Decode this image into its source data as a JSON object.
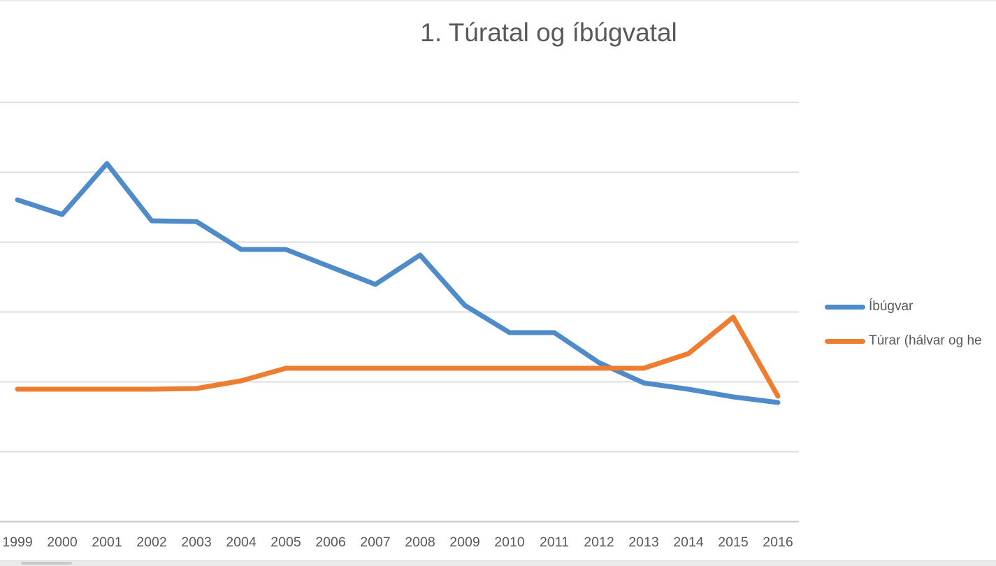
{
  "page": {
    "background": "#ffffff",
    "top_border_color": "#e9e9e9",
    "bottom_strip_color": "#eaeaea",
    "bottom_left_artifact_color": "#c9c9c9"
  },
  "chart": {
    "title": "1. Túratal og íbúgvatal",
    "title_color": "#595959",
    "gridline_color": "#d9d9d9",
    "axis_line_color": "#c6c6c6",
    "tick_label_color": "#595959",
    "legend": [
      {
        "label": "Íbúgvar",
        "color": "#4f8bc9"
      },
      {
        "label": "Túrar (hálvar og he",
        "color": "#ed7d31"
      }
    ]
  },
  "chart_data": {
    "type": "line",
    "title": "1. Túratal og íbúgvatal",
    "x": [
      1999,
      2000,
      2001,
      2002,
      2003,
      2004,
      2005,
      2006,
      2007,
      2008,
      2009,
      2010,
      2011,
      2012,
      2013,
      2014,
      2015,
      2016
    ],
    "series": [
      {
        "name": "Íbúgvar",
        "color": "#4f8bc9",
        "values": [
          4.6,
          4.39,
          5.12,
          4.3,
          4.29,
          3.89,
          3.89,
          3.64,
          3.39,
          3.81,
          3.09,
          2.7,
          2.7,
          2.27,
          1.98,
          1.89,
          1.78,
          1.7
        ]
      },
      {
        "name": "Túrar (hálvar og he",
        "color": "#ed7d31",
        "values": [
          1.89,
          1.89,
          1.89,
          1.89,
          1.9,
          2.01,
          2.19,
          2.19,
          2.19,
          2.19,
          2.19,
          2.19,
          2.19,
          2.19,
          2.19,
          2.4,
          2.92,
          1.79
        ]
      }
    ],
    "xlabel": "",
    "ylabel": "",
    "ylim": [
      0,
      6
    ],
    "y_units": "gridline intervals above the x-axis; y-axis tick labels are cropped out of the visible screenshot",
    "grid": true,
    "legend_position": "right"
  }
}
